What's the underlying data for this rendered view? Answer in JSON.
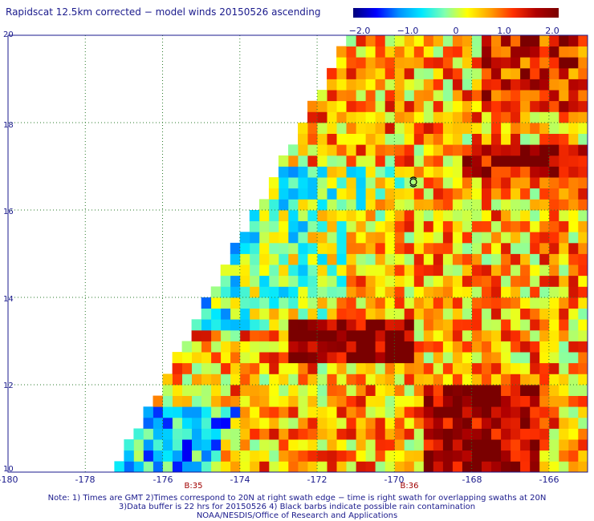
{
  "title": "Rapidscat 12.5km corrected − model winds 20150526 ascending",
  "colorbar": {
    "labels": [
      "−2.0",
      "−1.0",
      "0",
      "1.0",
      "2.0"
    ],
    "values": [
      -2.0,
      -1.0,
      0,
      1.0,
      2.0
    ],
    "min": -2.0,
    "max": 2.0
  },
  "map": {
    "lon_range": [
      -180,
      -165
    ],
    "lat_range": [
      10,
      20
    ],
    "x_ticks": [
      "-180",
      "-178",
      "-176",
      "-174",
      "-172",
      "-170",
      "-168",
      "-166"
    ],
    "x_tick_values": [
      -180,
      -178,
      -176,
      -174,
      -172,
      -170,
      -168,
      -166
    ],
    "y_ticks": [
      "10",
      "12",
      "14",
      "16",
      "18",
      "20"
    ],
    "y_tick_values": [
      10,
      12,
      14,
      16,
      18,
      20
    ],
    "grid": true,
    "swath": {
      "top_left_lon": -171.2,
      "top_right_lon": -165,
      "bottom_left_lon": -177.3,
      "lat_top": 20,
      "lat_bottom": 10,
      "cell_size_deg": 0.25
    },
    "pass_times": [
      {
        "label": "B:35",
        "lon": -175.2
      },
      {
        "label": "B:36",
        "lon": -169.6
      }
    ],
    "colors": {
      "grid": "#2a7a2a",
      "frame": "#1a1a8c",
      "time_label": "#a00000"
    }
  },
  "notes": [
    "Note: 1) Times are GMT 2)Times correspond to 20N at right swath edge − time is right swath for overlapping swaths at 20N",
    "3)Data buffer is 22 hrs for 20150526 4) Black barbs indicate possible rain contamination",
    "NOAA/NESDIS/Office of Research and Applications"
  ]
}
